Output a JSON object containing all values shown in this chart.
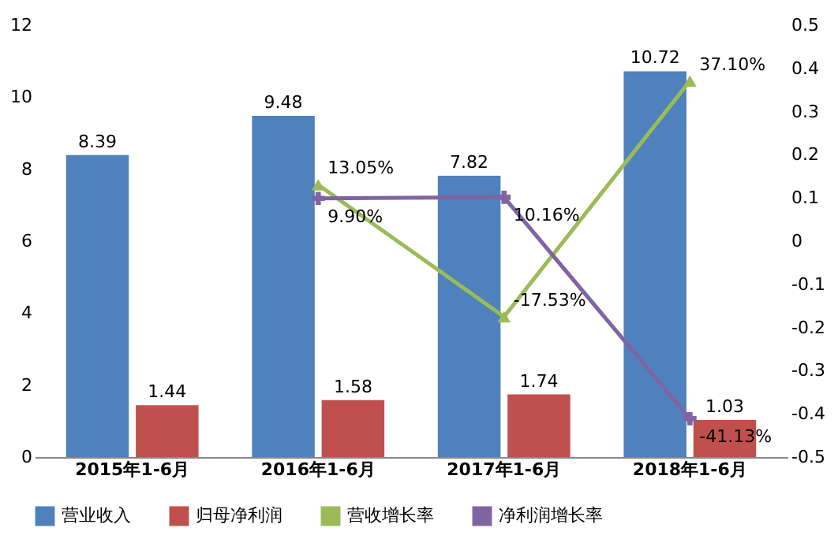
{
  "chart_data": {
    "type": "bar",
    "categories": [
      "2015年1-6月",
      "2016年1-6月",
      "2017年1-6月",
      "2018年1-6月"
    ],
    "series": [
      {
        "name": "营业收入",
        "color": "#4f81bd",
        "values": [
          8.39,
          9.48,
          7.82,
          10.72
        ],
        "value_labels": [
          "8.39",
          "9.48",
          "7.82",
          "10.72"
        ]
      },
      {
        "name": "归母净利润",
        "color": "#c0504d",
        "values": [
          1.44,
          1.58,
          1.74,
          1.03
        ],
        "value_labels": [
          "1.44",
          "1.58",
          "1.74",
          "1.03"
        ]
      },
      {
        "name": "营收增长率",
        "type": "line",
        "axis": "y2",
        "marker": "triangle",
        "color": "#9bbb59",
        "values": [
          null,
          0.1305,
          -0.1753,
          0.371
        ],
        "value_labels": [
          null,
          "13.05%",
          "-17.53%",
          "37.10%"
        ]
      },
      {
        "name": "净利润增长率",
        "type": "line",
        "axis": "y2",
        "marker": "cross",
        "color": "#8064a2",
        "values": [
          null,
          0.099,
          0.1016,
          -0.4113
        ],
        "value_labels": [
          null,
          "9.90%",
          "10.16%",
          "-41.13%"
        ]
      }
    ],
    "ylim": [
      0,
      12
    ],
    "yticks": [
      0,
      2,
      4,
      6,
      8,
      10,
      12
    ],
    "y2lim": [
      -0.5,
      0.5
    ],
    "y2ticks": [
      -0.5,
      -0.4,
      -0.3,
      -0.2,
      -0.1,
      0,
      0.1,
      0.2,
      0.3,
      0.4,
      0.5
    ],
    "legend": "bottom",
    "grid": false,
    "line_style": "solid"
  }
}
